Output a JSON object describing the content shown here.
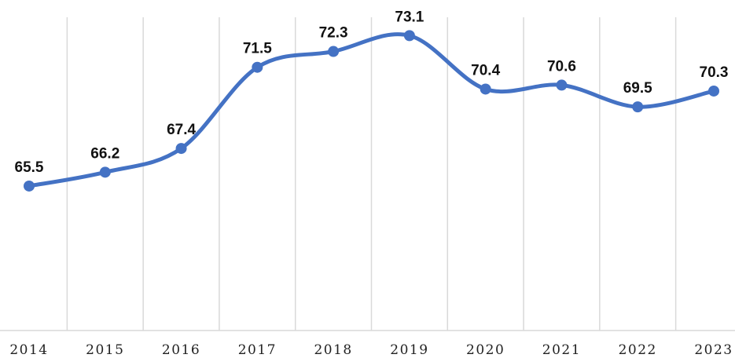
{
  "chart_data": {
    "type": "line",
    "title": "",
    "xlabel": "",
    "ylabel": "",
    "categories": [
      "2014",
      "2015",
      "2016",
      "2017",
      "2018",
      "2019",
      "2020",
      "2021",
      "2022",
      "2023"
    ],
    "series": [
      {
        "values": [
          65.5,
          66.2,
          67.4,
          71.5,
          72.3,
          73.1,
          70.4,
          70.6,
          69.5,
          70.3
        ],
        "labels": [
          "65.5",
          "66.2",
          "67.4",
          "71.5",
          "72.3",
          "73.1",
          "70.4",
          "70.6",
          "69.5",
          "70.3"
        ],
        "color": "#4472c4"
      }
    ],
    "ylim": [
      58.2,
      74.9
    ],
    "grid": "vertical",
    "legend": "none",
    "smooth": true
  }
}
